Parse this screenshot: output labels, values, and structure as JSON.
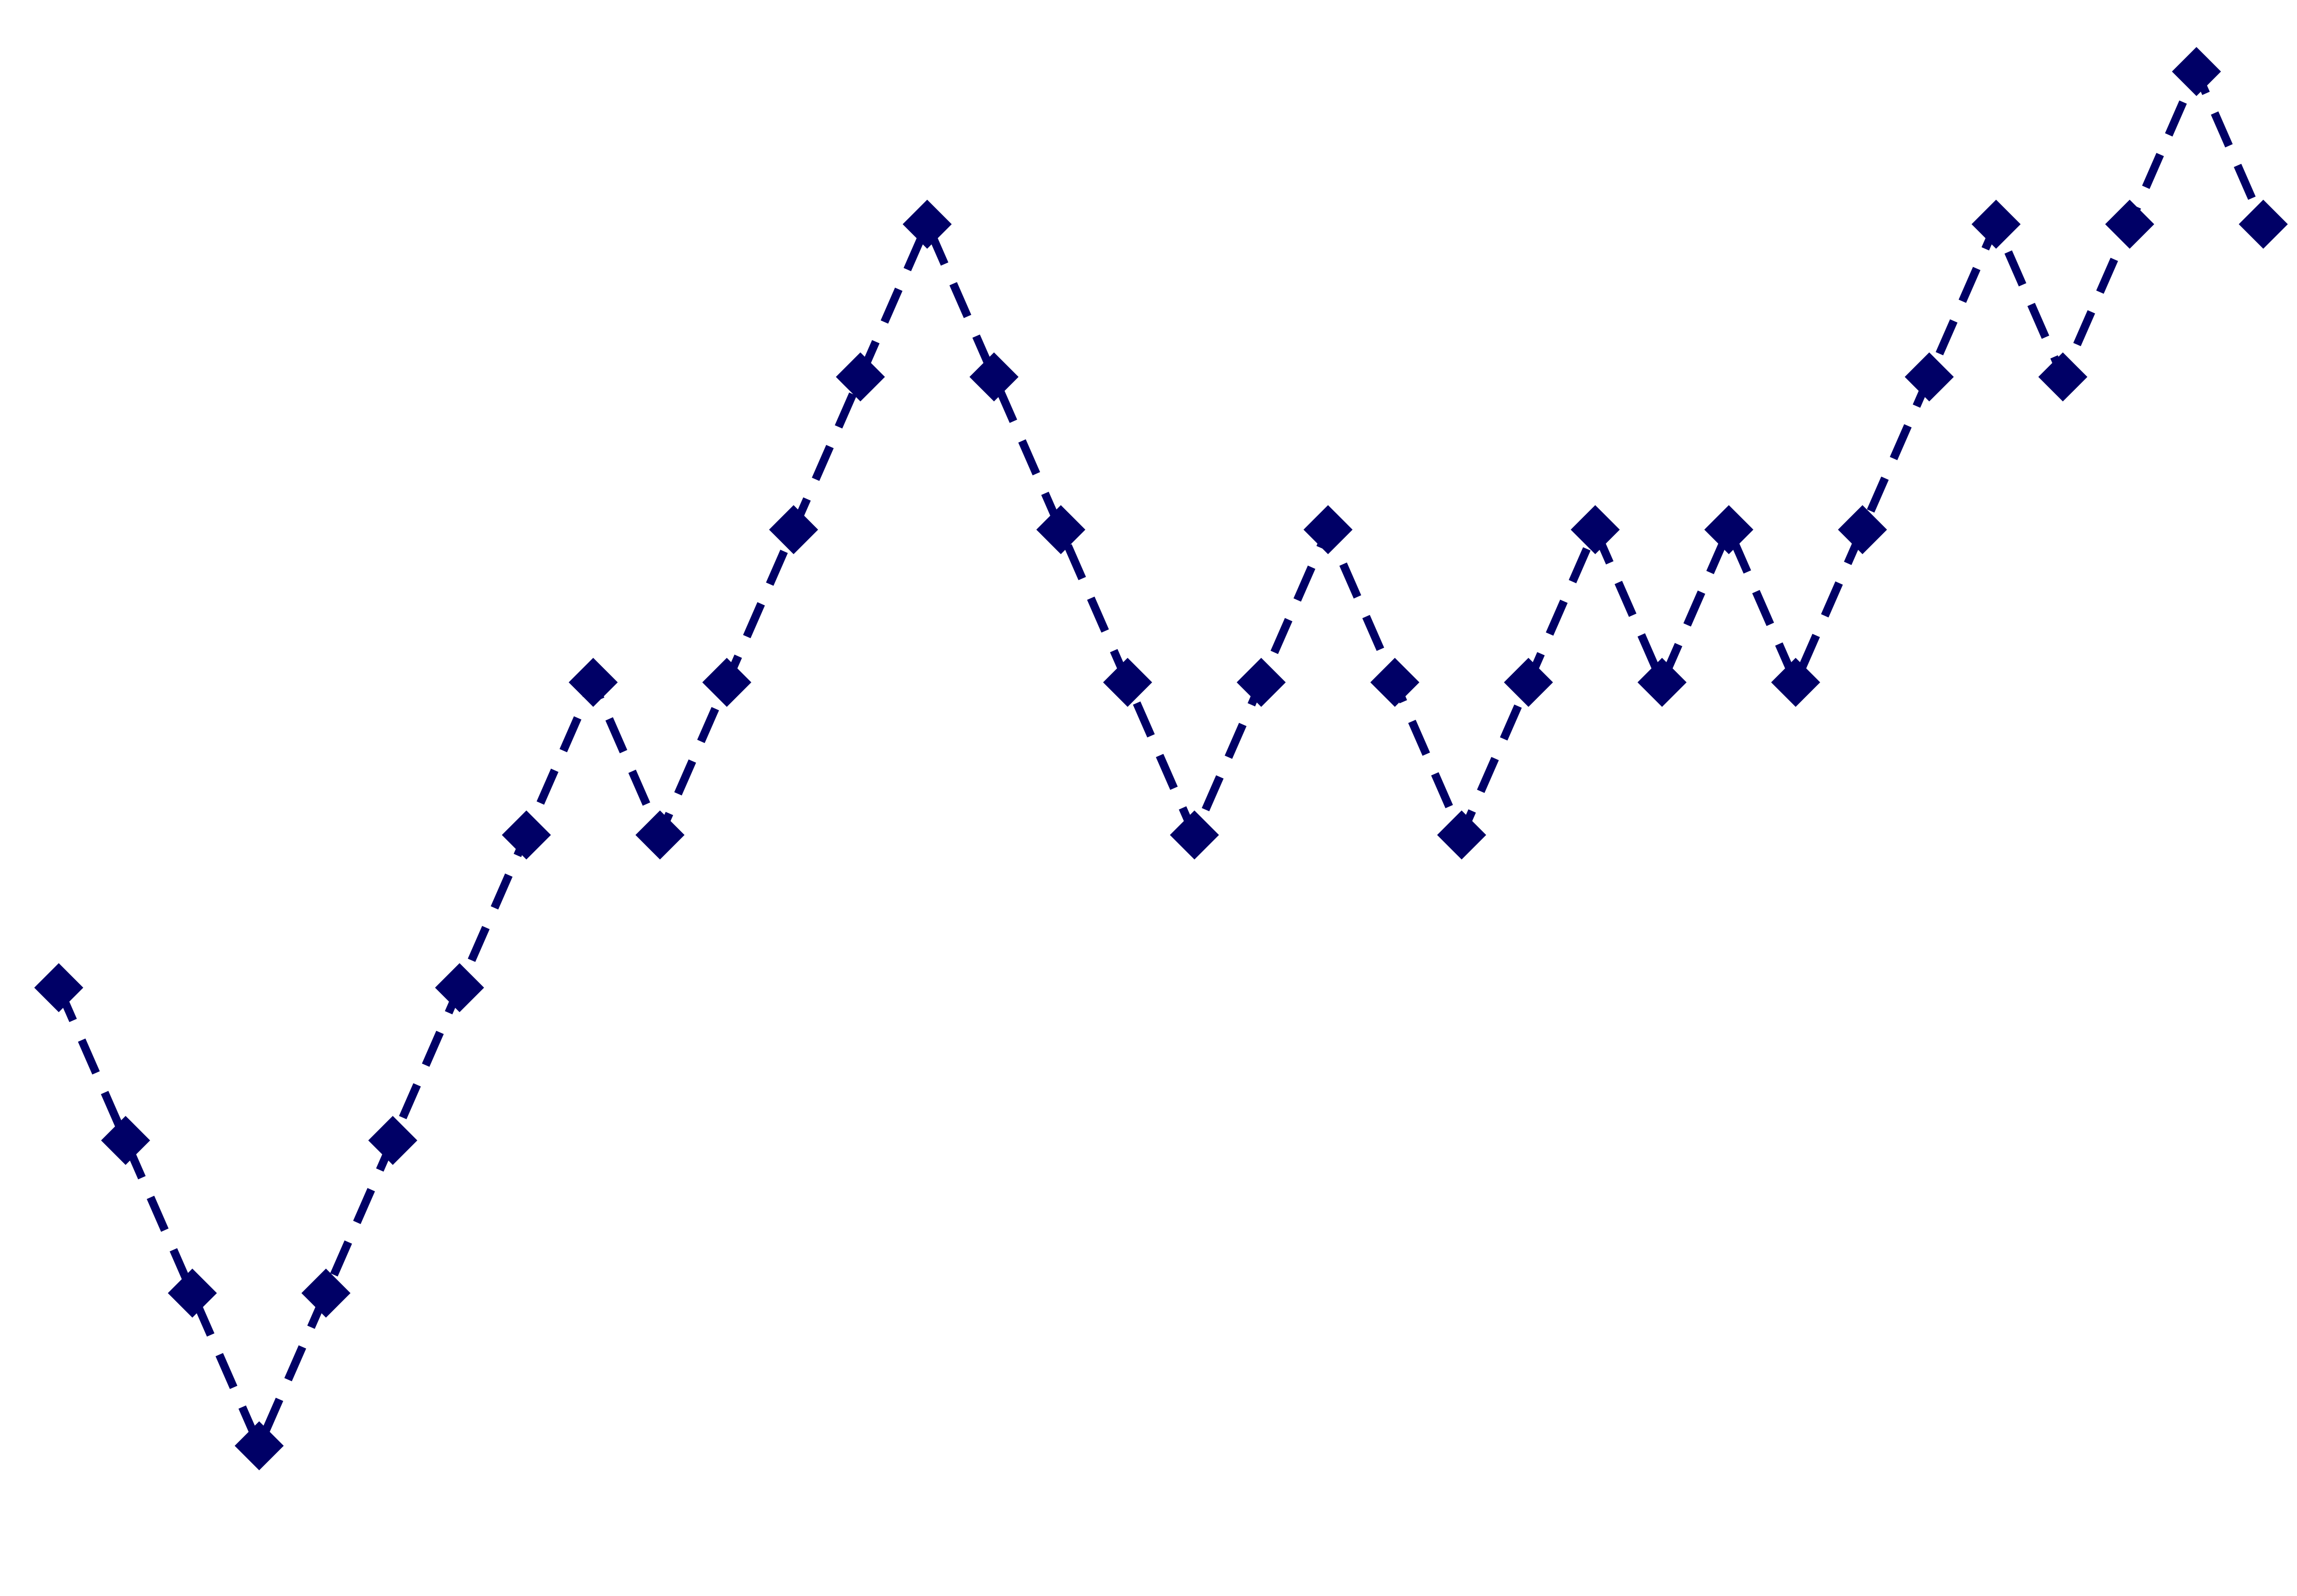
{
  "chart_data": {
    "type": "line",
    "x": [
      0,
      1,
      2,
      3,
      4,
      5,
      6,
      7,
      8,
      9,
      10,
      11,
      12,
      13,
      14,
      15,
      16,
      17,
      18,
      19,
      20,
      21,
      22,
      23,
      24,
      25,
      26,
      27,
      28,
      29,
      30,
      31,
      32,
      33
    ],
    "series": [
      {
        "values": [
          -4,
          -5,
          -6,
          -7,
          -6,
          -5,
          -4,
          -3,
          -2,
          -3,
          -2,
          -1,
          0,
          1,
          0,
          -1,
          -2,
          -3,
          -2,
          -1,
          -2,
          -3,
          -2,
          -1,
          -2,
          -1,
          -2,
          -1,
          0,
          1,
          0,
          1,
          2,
          1
        ]
      }
    ],
    "xlim": [
      0,
      33
    ],
    "ylim": [
      -7,
      2
    ],
    "grid": false,
    "line_style": "dashed",
    "marker": "diamond",
    "color": "#000066",
    "background": "#ffffff"
  }
}
